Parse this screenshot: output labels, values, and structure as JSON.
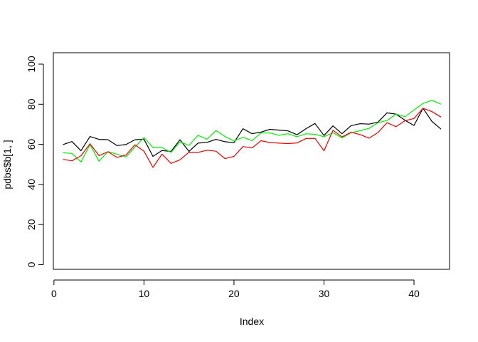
{
  "chart_data": {
    "type": "line",
    "title": "",
    "xlabel": "Index",
    "ylabel": "pdbs$b[1, ]",
    "xlim": [
      0,
      43
    ],
    "ylim": [
      0,
      100
    ],
    "xticks": [
      0,
      10,
      20,
      30,
      40
    ],
    "yticks": [
      0,
      20,
      40,
      60,
      80,
      100
    ],
    "grid": false,
    "legend": "none",
    "x": [
      1,
      2,
      3,
      4,
      5,
      6,
      7,
      8,
      9,
      10,
      11,
      12,
      13,
      14,
      15,
      16,
      17,
      18,
      19,
      20,
      21,
      22,
      23,
      24,
      25,
      26,
      27,
      28,
      29,
      30,
      31,
      32,
      33,
      34,
      35,
      36,
      37,
      38,
      39,
      40,
      41,
      42,
      43
    ],
    "series": [
      {
        "color": "#000000",
        "values": [
          59.9,
          61.4,
          56.8,
          63.9,
          62.5,
          62.3,
          59.4,
          59.9,
          62.3,
          62.6,
          54.0,
          56.9,
          56.5,
          62.3,
          56.5,
          60.6,
          61.0,
          62.5,
          61.3,
          60.8,
          67.8,
          65.3,
          66.1,
          67.5,
          67.1,
          66.7,
          64.8,
          67.8,
          70.4,
          64.4,
          69.2,
          65.3,
          69.3,
          70.3,
          70.1,
          71.1,
          75.7,
          75.1,
          72.0,
          69.4,
          78.0,
          71.4,
          67.6
        ]
      },
      {
        "color": "#00ee00",
        "values": [
          55.8,
          55.5,
          51.2,
          59.9,
          51.6,
          56.4,
          55.1,
          53.7,
          58.7,
          63.4,
          58.4,
          58.4,
          56.0,
          61.2,
          59.5,
          64.5,
          62.6,
          66.9,
          63.9,
          61.7,
          63.5,
          61.9,
          65.7,
          65.7,
          64.5,
          65.3,
          63.8,
          65.3,
          65.0,
          63.8,
          65.8,
          63.2,
          65.8,
          66.8,
          68.0,
          70.8,
          71.9,
          75.1,
          73.8,
          77.2,
          80.4,
          82.0,
          80.0
        ]
      },
      {
        "color": "#ee0000",
        "values": [
          52.5,
          51.8,
          54.3,
          60.3,
          54.4,
          56.3,
          53.5,
          54.7,
          59.8,
          56.6,
          48.5,
          55.1,
          50.5,
          52.3,
          56.1,
          56.0,
          57.1,
          56.6,
          52.9,
          54.0,
          58.9,
          58.2,
          61.8,
          60.9,
          60.6,
          60.4,
          60.7,
          62.9,
          63.0,
          56.8,
          67.0,
          63.7,
          66.0,
          64.9,
          63.1,
          65.9,
          70.8,
          68.8,
          71.8,
          72.9,
          78.0,
          76.3,
          73.6
        ]
      }
    ]
  }
}
